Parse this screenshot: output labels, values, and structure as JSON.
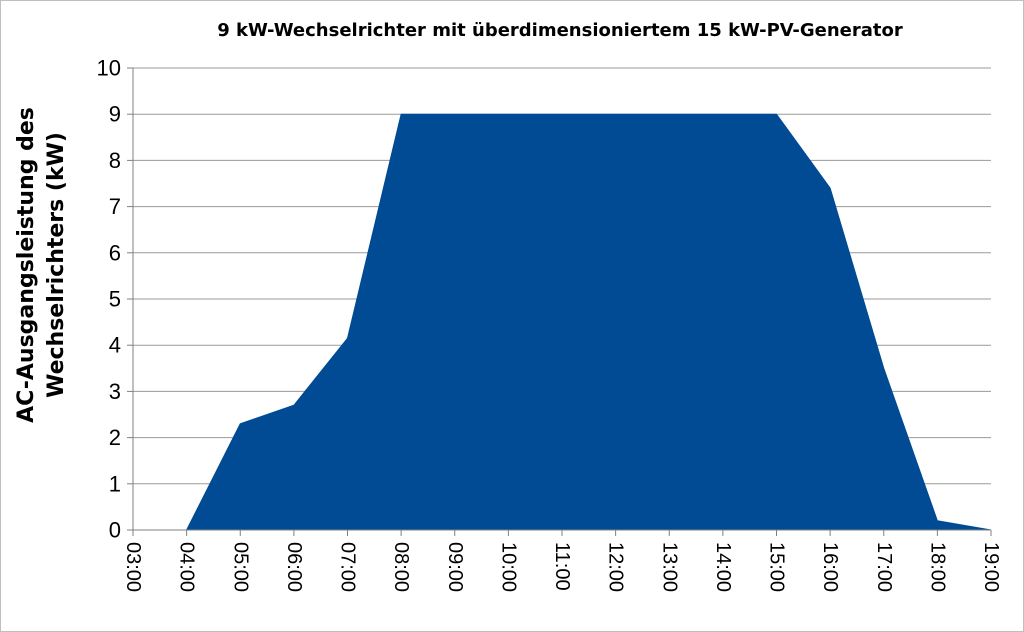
{
  "chart_data": {
    "type": "area",
    "title": "9 kW-Wechselrichter mit überdimensioniertem 15 kW-PV-Generator",
    "ylabel_lines": [
      "AC-Ausgangsleistung des",
      "Wechselrichters (kW)"
    ],
    "xlabel": "",
    "x_ticks": [
      "03:00",
      "04:00",
      "05:00",
      "06:00",
      "07:00",
      "08:00",
      "09:00",
      "10:00",
      "11:00",
      "12:00",
      "13:00",
      "14:00",
      "15:00",
      "16:00",
      "17:00",
      "18:00",
      "19:00"
    ],
    "y_ticks": [
      "0",
      "1",
      "2",
      "3",
      "4",
      "5",
      "6",
      "7",
      "8",
      "9",
      "10"
    ],
    "ylim": [
      0,
      10
    ],
    "xlim": [
      "03:00",
      "19:00"
    ],
    "grid": true,
    "legend": "none",
    "series": [
      {
        "color": "#004b93",
        "points": [
          {
            "x": "04:00",
            "y": 0
          },
          {
            "x": "05:00",
            "y": 2.3
          },
          {
            "x": "06:00",
            "y": 2.7
          },
          {
            "x": "07:00",
            "y": 4.15
          },
          {
            "x": "08:00",
            "y": 9.0
          },
          {
            "x": "09:00",
            "y": 9.0
          },
          {
            "x": "10:00",
            "y": 9.0
          },
          {
            "x": "11:00",
            "y": 9.0
          },
          {
            "x": "12:00",
            "y": 9.0
          },
          {
            "x": "13:00",
            "y": 9.0
          },
          {
            "x": "14:00",
            "y": 9.0
          },
          {
            "x": "15:00",
            "y": 9.0
          },
          {
            "x": "16:00",
            "y": 7.4
          },
          {
            "x": "17:00",
            "y": 3.5
          },
          {
            "x": "18:00",
            "y": 0.2
          },
          {
            "x": "19:00",
            "y": 0
          }
        ]
      }
    ],
    "gridline_color": "#9a9a9a",
    "axis_color": "#808080"
  }
}
